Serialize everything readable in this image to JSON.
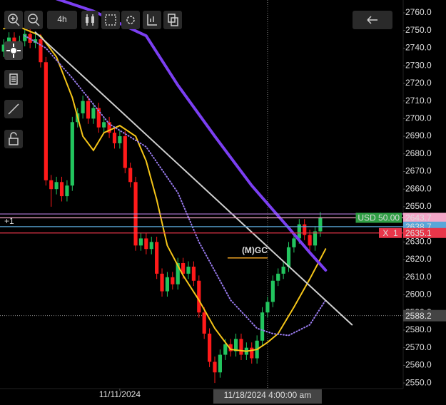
{
  "chart_data": {
    "type": "candlestick",
    "interval": "4h",
    "x": [
      0,
      1,
      2,
      3,
      4,
      5,
      6,
      7,
      8,
      9,
      10,
      11,
      12,
      13,
      14,
      15,
      16,
      17,
      18,
      19,
      20,
      21,
      22,
      23,
      24,
      25,
      26,
      27,
      28,
      29,
      30,
      31,
      32,
      33,
      34,
      35,
      36,
      37,
      38,
      39,
      40,
      41,
      42,
      43,
      44,
      45,
      46,
      47,
      48,
      49,
      50,
      51,
      52,
      53,
      54,
      55,
      56,
      57,
      58,
      59,
      60
    ],
    "open": [
      2738,
      2742,
      2746,
      2740,
      2744,
      2748,
      2743,
      2745,
      2732,
      2665,
      2660,
      2664,
      2656,
      2662,
      2698,
      2703,
      2710,
      2700,
      2706,
      2695,
      2698,
      2692,
      2686,
      2690,
      2672,
      2664,
      2628,
      2632,
      2626,
      2630,
      2612,
      2602,
      2610,
      2606,
      2618,
      2612,
      2616,
      2608,
      2590,
      2578,
      2562,
      2556,
      2566,
      2572,
      2568,
      2575,
      2566,
      2570,
      2564,
      2574,
      2590,
      2596,
      2608,
      2612,
      2616,
      2627,
      2632,
      2640,
      2634,
      2628,
      2636
    ],
    "high": [
      2745,
      2749,
      2749,
      2747,
      2751,
      2751,
      2748,
      2748,
      2735,
      2668,
      2667,
      2667,
      2665,
      2701,
      2706,
      2713,
      2713,
      2709,
      2709,
      2701,
      2701,
      2695,
      2693,
      2693,
      2675,
      2667,
      2635,
      2635,
      2633,
      2633,
      2615,
      2613,
      2613,
      2621,
      2621,
      2619,
      2619,
      2611,
      2593,
      2581,
      2565,
      2569,
      2575,
      2575,
      2578,
      2578,
      2573,
      2573,
      2577,
      2593,
      2599,
      2611,
      2615,
      2619,
      2630,
      2635,
      2643,
      2643,
      2637,
      2639,
      2647
    ],
    "low": [
      2735,
      2739,
      2737,
      2737,
      2741,
      2740,
      2740,
      2729,
      2662,
      2650,
      2657,
      2653,
      2653,
      2659,
      2695,
      2700,
      2697,
      2697,
      2692,
      2692,
      2689,
      2683,
      2683,
      2669,
      2661,
      2625,
      2625,
      2623,
      2623,
      2609,
      2599,
      2599,
      2603,
      2603,
      2609,
      2609,
      2605,
      2587,
      2575,
      2559,
      2550,
      2553,
      2563,
      2565,
      2565,
      2563,
      2563,
      2561,
      2561,
      2571,
      2587,
      2593,
      2605,
      2609,
      2613,
      2624,
      2629,
      2631,
      2625,
      2625,
      2633
    ],
    "close": [
      2742,
      2746,
      2740,
      2744,
      2748,
      2743,
      2745,
      2732,
      2665,
      2660,
      2664,
      2656,
      2662,
      2698,
      2703,
      2710,
      2700,
      2706,
      2695,
      2698,
      2692,
      2686,
      2690,
      2672,
      2664,
      2628,
      2632,
      2626,
      2630,
      2612,
      2602,
      2610,
      2606,
      2618,
      2612,
      2616,
      2608,
      2590,
      2578,
      2562,
      2556,
      2566,
      2572,
      2568,
      2575,
      2566,
      2570,
      2564,
      2574,
      2590,
      2596,
      2608,
      2612,
      2616,
      2627,
      2632,
      2640,
      2634,
      2628,
      2636,
      2644
    ],
    "up_color": "#22c55e",
    "down_color": "#ff1a1a",
    "xlim": [
      -0.7,
      75.7
    ],
    "xticks": [
      {
        "value": 22,
        "label": "11/11/2024"
      }
    ],
    "ylim": [
      2546.8,
      2767.3
    ],
    "yticks": [
      {
        "value": 2550,
        "label": "2550.0"
      },
      {
        "value": 2560,
        "label": "2560.0"
      },
      {
        "value": 2570,
        "label": "2570.0"
      },
      {
        "value": 2580,
        "label": "2580.0"
      },
      {
        "value": 2590,
        "label": "2590.0"
      },
      {
        "value": 2600,
        "label": "2600.0"
      },
      {
        "value": 2610,
        "label": "2610.0"
      },
      {
        "value": 2620,
        "label": "2620.0"
      },
      {
        "value": 2630,
        "label": "2630.0"
      },
      {
        "value": 2640,
        "label": "2640.0"
      },
      {
        "value": 2650,
        "label": "2650.0"
      },
      {
        "value": 2660,
        "label": "2660.0"
      },
      {
        "value": 2670,
        "label": "2670.0"
      },
      {
        "value": 2680,
        "label": "2680.0"
      },
      {
        "value": 2690,
        "label": "2690.0"
      },
      {
        "value": 2700,
        "label": "2700.0"
      },
      {
        "value": 2710,
        "label": "2710.0"
      },
      {
        "value": 2720,
        "label": "2720.0"
      },
      {
        "value": 2730,
        "label": "2730.0"
      },
      {
        "value": 2740,
        "label": "2740.0"
      },
      {
        "value": 2750,
        "label": "2750.0"
      },
      {
        "value": 2760,
        "label": "2760.0"
      }
    ],
    "overlays": [
      {
        "color": "#f5c518",
        "width": 2,
        "dash": "none",
        "x": [
          0,
          3,
          7,
          10,
          13,
          15,
          17,
          19,
          22,
          25,
          27,
          29,
          31,
          34,
          37,
          40,
          43,
          46,
          48,
          50,
          52,
          55,
          58,
          61
        ],
        "values": [
          2751,
          2752,
          2747,
          2735,
          2712,
          2690,
          2682,
          2692,
          2696,
          2690,
          2676,
          2654,
          2628,
          2611,
          2597,
          2581,
          2569,
          2568,
          2569,
          2573,
          2578,
          2593,
          2609,
          2626
        ]
      },
      {
        "color": "#9a7cf0",
        "width": 2,
        "dash": "1 3",
        "x": [
          4,
          8,
          13,
          20,
          27,
          33,
          37,
          43,
          48,
          51,
          54,
          58,
          61
        ],
        "values": [
          2747,
          2740,
          2723,
          2697,
          2684,
          2658,
          2630,
          2597,
          2581,
          2578,
          2577,
          2583,
          2597
        ]
      },
      {
        "color": "#7b3ff2",
        "width": 4,
        "dash": "none",
        "x": [
          10,
          17,
          27,
          33,
          40,
          47,
          54,
          58,
          61
        ],
        "values": [
          2768,
          2761,
          2747,
          2719,
          2690,
          2662,
          2638,
          2624,
          2614
        ]
      },
      {
        "color": "#cfcfcf",
        "width": 2,
        "dash": "none",
        "x": [
          6,
          66
        ],
        "values": [
          2749,
          2583
        ]
      }
    ],
    "levels": [
      {
        "value": 2645.9,
        "color": "#b57edc",
        "show_label": false
      },
      {
        "value": 2643.7,
        "color": "#f4a6c8",
        "show_label": true,
        "tag": "USD 50.00",
        "tag_color": "#2f9e44"
      },
      {
        "value": 2638.7,
        "color": "#5aa7d9",
        "show_label": true,
        "note": "+1"
      },
      {
        "value": 2635.1,
        "color": "#e8364a",
        "show_label": true,
        "tag": "X  1",
        "tag_color": "#e8364a"
      }
    ],
    "annotation": {
      "text": "(M)GC",
      "x": 50,
      "y": 2625,
      "color": "#f5a623"
    },
    "crosshair": {
      "x": 50,
      "y": 2588.2,
      "label": "11/18/2024 4:00:00 am"
    }
  }
}
